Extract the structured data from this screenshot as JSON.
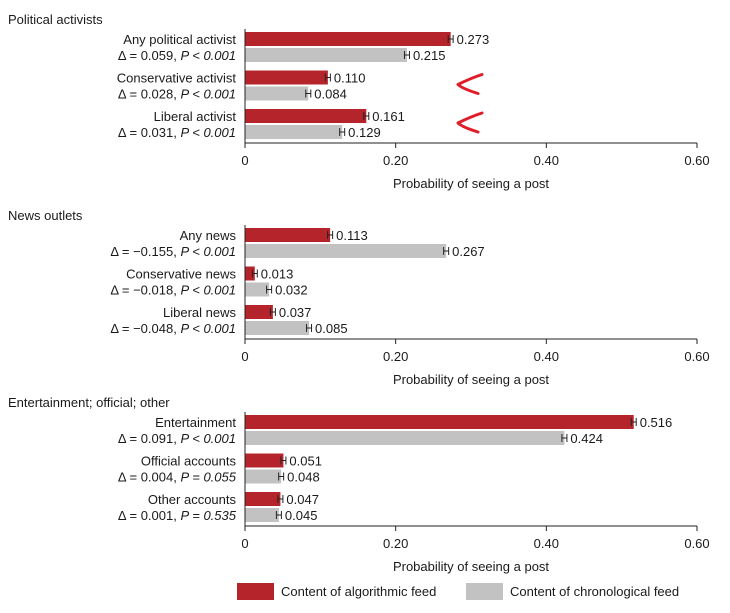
{
  "colors": {
    "algorithmic": "#b5242a",
    "chronological": "#c2c2c2",
    "axis": "#222222",
    "annotation": "#e11d2a"
  },
  "legend": {
    "algorithmic_label": "Content of algorithmic feed",
    "chronological_label": "Content of chronological feed"
  },
  "chart_data": [
    {
      "type": "bar",
      "orientation": "horizontal",
      "title": "Political activists",
      "xlabel": "Probability of seeing a post",
      "xlim": [
        0,
        0.6
      ],
      "xticks": [
        "0",
        "0.20",
        "0.40",
        "0.60"
      ],
      "series": [
        {
          "name": "Content of algorithmic feed",
          "values": [
            0.273,
            0.11,
            0.161
          ],
          "labels": [
            "0.273",
            "0.110",
            "0.161"
          ]
        },
        {
          "name": "Content of chronological feed",
          "values": [
            0.215,
            0.084,
            0.129
          ],
          "labels": [
            "0.215",
            "0.084",
            "0.129"
          ]
        }
      ],
      "categories": [
        {
          "name": "Any political activist",
          "delta": "Δ = 0.059, ",
          "p": "P < 0.001"
        },
        {
          "name": "Conservative activist",
          "delta": "Δ = 0.028, ",
          "p": "P < 0.001"
        },
        {
          "name": "Liberal activist",
          "delta": "Δ = 0.031, ",
          "p": "P < 0.001"
        }
      ],
      "handwritten_marks": [
        1,
        2
      ]
    },
    {
      "type": "bar",
      "orientation": "horizontal",
      "title": "News outlets",
      "xlabel": "Probability of seeing a post",
      "xlim": [
        0,
        0.6
      ],
      "xticks": [
        "0",
        "0.20",
        "0.40",
        "0.60"
      ],
      "series": [
        {
          "name": "Content of algorithmic feed",
          "values": [
            0.113,
            0.013,
            0.037
          ],
          "labels": [
            "0.113",
            "0.013",
            "0.037"
          ]
        },
        {
          "name": "Content of chronological feed",
          "values": [
            0.267,
            0.032,
            0.085
          ],
          "labels": [
            "0.267",
            "0.032",
            "0.085"
          ]
        }
      ],
      "categories": [
        {
          "name": "Any news",
          "delta": "Δ = −0.155, ",
          "p": "P < 0.001"
        },
        {
          "name": "Conservative news",
          "delta": "Δ = −0.018, ",
          "p": "P < 0.001"
        },
        {
          "name": "Liberal news",
          "delta": "Δ = −0.048, ",
          "p": "P < 0.001"
        }
      ],
      "handwritten_marks": []
    },
    {
      "type": "bar",
      "orientation": "horizontal",
      "title": "Entertainment; official; other",
      "xlabel": "Probability of seeing a post",
      "xlim": [
        0,
        0.6
      ],
      "xticks": [
        "0",
        "0.20",
        "0.40",
        "0.60"
      ],
      "series": [
        {
          "name": "Content of algorithmic feed",
          "values": [
            0.516,
            0.051,
            0.047
          ],
          "labels": [
            "0.516",
            "0.051",
            "0.047"
          ]
        },
        {
          "name": "Content of chronological feed",
          "values": [
            0.424,
            0.048,
            0.045
          ],
          "labels": [
            "0.424",
            "0.048",
            "0.045"
          ]
        }
      ],
      "categories": [
        {
          "name": "Entertainment",
          "delta": "Δ = 0.091, ",
          "p": "P < 0.001"
        },
        {
          "name": "Official accounts",
          "delta": "Δ = 0.004, ",
          "p": "P = 0.055"
        },
        {
          "name": "Other accounts",
          "delta": "Δ = 0.001, ",
          "p": "P = 0.535"
        }
      ],
      "handwritten_marks": []
    }
  ]
}
